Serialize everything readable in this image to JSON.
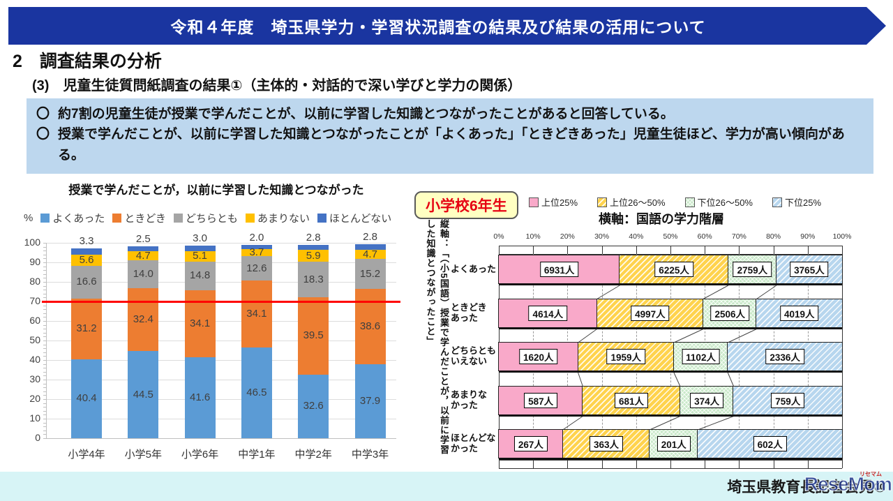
{
  "banner": {
    "title": "令和４年度　埼玉県学力・学習状況調査の結果及び結果の活用について"
  },
  "headings": {
    "section": "2　調査結果の分析",
    "subsection": "(3)　児童生徒質問紙調査の結果①（主体的・対話的で深い学びと学力の関係）"
  },
  "summary": {
    "marker": "〇",
    "bullets": [
      "約7割の児童生徒が授業で学んだことが、以前に学習した知識とつながったことがあると回答している。",
      "授業で学んだことが、以前に学習した知識とつながったことが「よくあった」「ときどきあった」児童生徒ほど、学力が高い傾向がある。"
    ]
  },
  "chart_data": [
    {
      "type": "bar",
      "stacked": true,
      "orientation": "vertical",
      "title": "授業で学んだことが，以前に学習した知識とつながった",
      "unit_label": "%",
      "categories": [
        "小学4年",
        "小学5年",
        "小学6年",
        "中学1年",
        "中学2年",
        "中学3年"
      ],
      "series": [
        {
          "name": "よくあった",
          "color": "#5B9BD5",
          "values": [
            40.4,
            44.5,
            41.6,
            46.5,
            32.6,
            37.9
          ]
        },
        {
          "name": "ときどき",
          "color": "#ED7D31",
          "values": [
            31.2,
            32.4,
            34.1,
            34.1,
            39.5,
            38.6
          ]
        },
        {
          "name": "どちらとも",
          "color": "#A5A5A5",
          "values": [
            16.6,
            14.0,
            14.8,
            12.6,
            18.3,
            15.2
          ]
        },
        {
          "name": "あまりない",
          "color": "#FFC000",
          "values": [
            5.6,
            4.7,
            5.1,
            3.7,
            5.9,
            4.7
          ]
        },
        {
          "name": "ほとんどない",
          "color": "#4472C4",
          "values": [
            3.3,
            2.5,
            3.0,
            2.0,
            2.8,
            2.8
          ]
        }
      ],
      "ylim": [
        0,
        100
      ],
      "ytick_step": 10,
      "grid": true,
      "ref_line": {
        "value": 70,
        "color": "#FF0000"
      }
    },
    {
      "type": "bar",
      "stacked": true,
      "orientation": "horizontal",
      "normalized_to_100pct": true,
      "badge": "小学校6年生",
      "title": "横軸：国語の学力階層",
      "vertical_axis_label": "縦軸：「（小5国語）授業で学んだことが，以前に学習した知識とつながったこと」",
      "categories": [
        "よくあった",
        "ときどきあった",
        "どちらともいえない",
        "あまりなかった",
        "ほとんどなかった"
      ],
      "category_display": [
        "よくあった",
        "ときどき\nあった",
        "どちらとも\nいえない",
        "あまりな\nかった",
        "ほとんどな\nかった"
      ],
      "series": [
        {
          "name": "上位25%",
          "color": "#F9A9C9",
          "hatch": "none",
          "values": [
            6931,
            4614,
            1620,
            587,
            267
          ]
        },
        {
          "name": "上位26～50%",
          "color": "#FFD34D",
          "hatch": "diag",
          "values": [
            6225,
            4997,
            1959,
            681,
            363
          ]
        },
        {
          "name": "下位26～50%",
          "color": "#C9E9C9",
          "hatch": "cross",
          "values": [
            2759,
            2506,
            1102,
            374,
            201
          ]
        },
        {
          "name": "下位25%",
          "color": "#B7D6EE",
          "hatch": "diag",
          "values": [
            3765,
            4019,
            2336,
            759,
            602
          ]
        }
      ],
      "value_suffix": "人",
      "xtick_labels": [
        "0%",
        "10%",
        "20%",
        "30%",
        "40%",
        "50%",
        "60%",
        "70%",
        "80%",
        "90%",
        "100%"
      ]
    }
  ],
  "footer": {
    "text": "埼玉県教育長記者会見⑩",
    "watermark": "ReseMom",
    "watermark_ruby": "リセマム"
  }
}
